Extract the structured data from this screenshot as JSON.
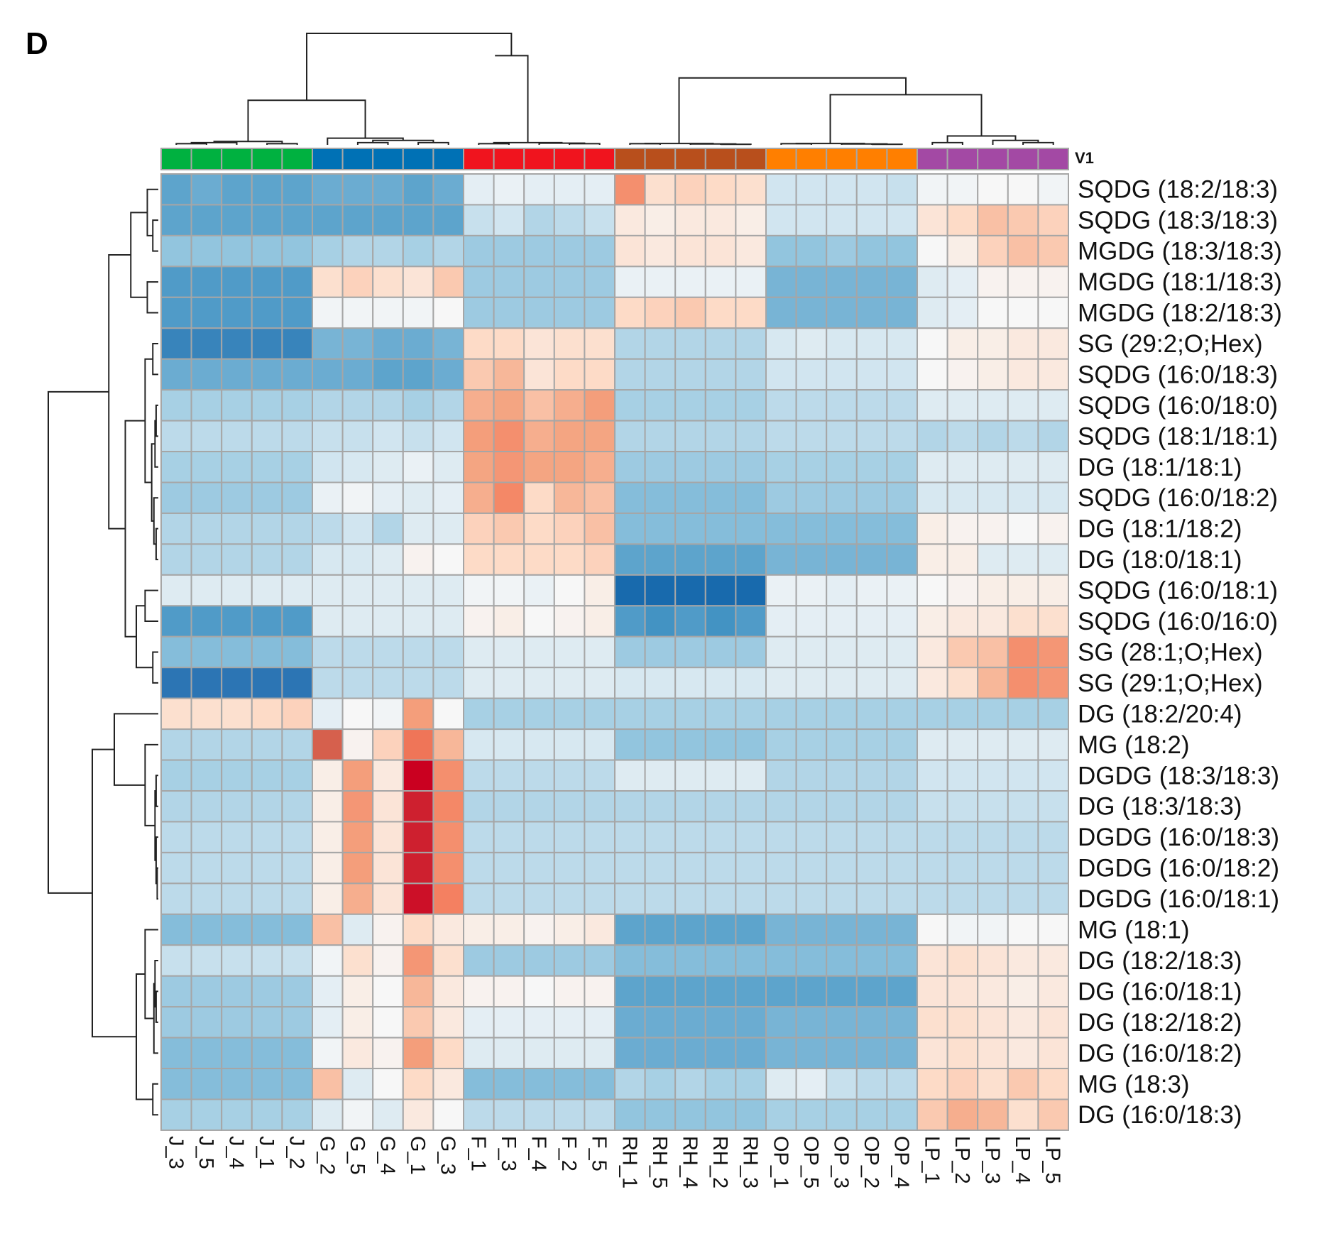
{
  "panel_letter": "D",
  "annotation_label": "V1",
  "chart_data": {
    "type": "heatmap",
    "title": "",
    "color_scale": {
      "min": -3,
      "mid": 0,
      "max": 3,
      "low": "#0571b0",
      "mid_color": "#f7f7f7",
      "high": "#ca0020"
    },
    "groups": [
      {
        "name": "J",
        "color": "#00b140"
      },
      {
        "name": "G",
        "color": "#0071b5"
      },
      {
        "name": "F",
        "color": "#f0141e"
      },
      {
        "name": "RH",
        "color": "#b84f1c"
      },
      {
        "name": "OP",
        "color": "#ff7f00"
      },
      {
        "name": "LP",
        "color": "#a349a4"
      }
    ],
    "columns": [
      "J_3",
      "J_5",
      "J_4",
      "J_1",
      "J_2",
      "G_2",
      "G_5",
      "G_4",
      "G_1",
      "G_3",
      "F_1",
      "F_3",
      "F_4",
      "F_2",
      "F_5",
      "RH_1",
      "RH_5",
      "RH_4",
      "RH_2",
      "RH_3",
      "OP_1",
      "OP_5",
      "OP_3",
      "OP_2",
      "OP_4",
      "LP_1",
      "LP_2",
      "LP_3",
      "LP_4",
      "LP_5"
    ],
    "rows": [
      "SQDG (18:2/18:3)",
      "SQDG (18:3/18:3)",
      "MGDG (18:3/18:3)",
      "MGDG (18:1/18:3)",
      "MGDG (18:2/18:3)",
      "SG (29:2;O;Hex)",
      "SQDG (16:0/18:3)",
      "SQDG (16:0/18:0)",
      "SQDG (18:1/18:1)",
      "DG (18:1/18:1)",
      "SQDG (16:0/18:2)",
      "DG (18:1/18:2)",
      "DG (18:0/18:1)",
      "SQDG (16:0/18:1)",
      "SQDG (16:0/16:0)",
      "SG (28:1;O;Hex)",
      "SG (29:1;O;Hex)",
      "DG (18:2/20:4)",
      "MG (18:2)",
      "DGDG (18:3/18:3)",
      "DG (18:3/18:3)",
      "DGDG (16:0/18:3)",
      "DGDG (16:0/18:2)",
      "DGDG (16:0/18:1)",
      "MG (18:1)",
      "DG (18:2/18:3)",
      "DG (16:0/18:1)",
      "DG (18:2/18:2)",
      "DG (16:0/18:2)",
      "MG (18:3)",
      "DG (16:0/18:3)"
    ],
    "values": [
      [
        -1.6,
        -1.5,
        -1.6,
        -1.6,
        -1.6,
        -1.5,
        -1.5,
        -1.5,
        -1.6,
        -1.5,
        -0.3,
        -0.2,
        -0.3,
        -0.3,
        -0.3,
        1.5,
        0.5,
        0.7,
        0.6,
        0.5,
        -0.6,
        -0.6,
        -0.6,
        -0.6,
        -0.7,
        -0.1,
        -0.1,
        0.0,
        0.0,
        -0.1
      ],
      [
        -1.6,
        -1.6,
        -1.6,
        -1.6,
        -1.6,
        -1.6,
        -1.6,
        -1.6,
        -1.6,
        -1.6,
        -0.7,
        -0.6,
        -0.9,
        -0.8,
        -0.7,
        0.3,
        0.2,
        0.3,
        0.3,
        0.2,
        -0.6,
        -0.6,
        -0.6,
        -0.6,
        -0.6,
        0.4,
        0.6,
        0.9,
        0.8,
        0.7
      ],
      [
        -1.2,
        -1.2,
        -1.2,
        -1.2,
        -1.2,
        -1.0,
        -0.9,
        -0.9,
        -1.0,
        -0.9,
        -1.1,
        -1.1,
        -1.1,
        -1.1,
        -1.1,
        0.4,
        0.3,
        0.4,
        0.4,
        0.3,
        -1.2,
        -1.2,
        -1.1,
        -1.2,
        -1.2,
        0.0,
        0.2,
        0.7,
        0.9,
        0.8
      ],
      [
        -1.7,
        -1.7,
        -1.7,
        -1.7,
        -1.7,
        0.5,
        0.7,
        0.5,
        0.4,
        0.8,
        -1.1,
        -1.1,
        -1.1,
        -1.1,
        -1.1,
        -0.2,
        -0.2,
        -0.2,
        -0.2,
        -0.2,
        -1.4,
        -1.4,
        -1.4,
        -1.4,
        -1.4,
        -0.4,
        -0.3,
        0.1,
        0.1,
        0.1
      ],
      [
        -1.7,
        -1.7,
        -1.7,
        -1.7,
        -1.7,
        -0.1,
        -0.1,
        -0.1,
        -0.1,
        0.0,
        -1.1,
        -1.1,
        -1.1,
        -1.1,
        -1.1,
        0.6,
        0.7,
        0.8,
        0.6,
        0.6,
        -1.4,
        -1.4,
        -1.4,
        -1.4,
        -1.4,
        -0.4,
        -0.3,
        0.0,
        0.0,
        0.0
      ],
      [
        -2.0,
        -2.0,
        -2.0,
        -2.0,
        -2.0,
        -1.4,
        -1.4,
        -1.5,
        -1.5,
        -1.4,
        0.6,
        0.6,
        0.4,
        0.5,
        0.5,
        -0.9,
        -0.9,
        -0.9,
        -0.9,
        -0.9,
        -0.5,
        -0.4,
        -0.5,
        -0.5,
        -0.5,
        0.0,
        0.2,
        0.2,
        0.3,
        0.3
      ],
      [
        -1.5,
        -1.5,
        -1.5,
        -1.5,
        -1.5,
        -1.5,
        -1.5,
        -1.6,
        -1.6,
        -1.5,
        0.8,
        1.0,
        0.4,
        0.6,
        0.6,
        -0.9,
        -0.9,
        -0.9,
        -0.9,
        -0.9,
        -0.6,
        -0.6,
        -0.6,
        -0.6,
        -0.6,
        0.0,
        0.1,
        0.2,
        0.3,
        0.3
      ],
      [
        -1.0,
        -1.0,
        -1.0,
        -1.0,
        -1.0,
        -0.9,
        -0.9,
        -0.9,
        -1.0,
        -0.9,
        1.1,
        1.2,
        0.9,
        1.1,
        1.3,
        -1.0,
        -1.0,
        -1.0,
        -1.0,
        -1.0,
        -0.8,
        -0.8,
        -0.8,
        -0.8,
        -0.8,
        -0.4,
        -0.4,
        -0.4,
        -0.4,
        -0.4
      ],
      [
        -0.8,
        -0.8,
        -0.8,
        -0.8,
        -0.8,
        -0.7,
        -0.7,
        -0.6,
        -0.7,
        -0.6,
        1.3,
        1.5,
        1.1,
        1.2,
        1.2,
        -0.9,
        -0.9,
        -0.9,
        -0.9,
        -0.9,
        -0.8,
        -0.8,
        -0.8,
        -0.8,
        -0.8,
        -0.9,
        -0.8,
        -0.9,
        -0.8,
        -0.9
      ],
      [
        -1.0,
        -1.0,
        -1.0,
        -1.0,
        -1.0,
        -0.6,
        -0.5,
        -0.4,
        -0.2,
        -0.4,
        1.2,
        1.4,
        1.2,
        1.2,
        1.1,
        -1.1,
        -1.1,
        -1.1,
        -1.1,
        -1.1,
        -1.0,
        -1.0,
        -1.0,
        -1.0,
        -1.0,
        -0.4,
        -0.4,
        -0.4,
        -0.4,
        -0.4
      ],
      [
        -1.1,
        -1.1,
        -1.1,
        -1.1,
        -1.1,
        -0.2,
        -0.1,
        -0.3,
        -0.4,
        -0.3,
        1.1,
        1.6,
        0.6,
        1.0,
        0.9,
        -1.3,
        -1.3,
        -1.3,
        -1.3,
        -1.3,
        -1.1,
        -1.1,
        -1.1,
        -1.1,
        -1.1,
        -0.5,
        -0.5,
        -0.5,
        -0.5,
        -0.5
      ],
      [
        -0.9,
        -0.9,
        -0.9,
        -0.9,
        -0.9,
        -0.8,
        -0.6,
        -0.9,
        -0.4,
        -0.4,
        0.7,
        0.8,
        0.6,
        0.7,
        0.9,
        -1.3,
        -1.3,
        -1.3,
        -1.3,
        -1.3,
        -1.3,
        -1.3,
        -1.3,
        -1.3,
        -1.3,
        0.2,
        0.1,
        0.1,
        0.0,
        0.1
      ],
      [
        -0.9,
        -0.9,
        -0.9,
        -0.9,
        -0.9,
        -0.5,
        -0.5,
        -0.4,
        0.1,
        0.0,
        0.6,
        0.6,
        0.6,
        0.6,
        0.7,
        -1.6,
        -1.6,
        -1.6,
        -1.6,
        -1.6,
        -1.4,
        -1.4,
        -1.4,
        -1.4,
        -1.4,
        0.2,
        0.2,
        -0.4,
        -0.4,
        -0.4
      ],
      [
        -0.4,
        -0.4,
        -0.4,
        -0.4,
        -0.4,
        -0.4,
        -0.4,
        -0.4,
        -0.4,
        -0.4,
        -0.1,
        -0.1,
        -0.2,
        0.0,
        0.2,
        -2.6,
        -2.6,
        -2.6,
        -2.6,
        -2.6,
        -0.2,
        -0.2,
        -0.3,
        -0.2,
        -0.2,
        0.0,
        0.1,
        0.2,
        0.2,
        0.2
      ],
      [
        -1.7,
        -1.7,
        -1.7,
        -1.7,
        -1.7,
        -0.4,
        -0.4,
        -0.4,
        -0.4,
        -0.4,
        0.1,
        0.2,
        0.0,
        0.1,
        0.2,
        -1.7,
        -1.8,
        -1.7,
        -1.8,
        -1.7,
        -0.3,
        -0.3,
        -0.3,
        -0.3,
        -0.3,
        0.2,
        0.3,
        0.3,
        0.5,
        0.5
      ],
      [
        -1.3,
        -1.3,
        -1.3,
        -1.3,
        -1.3,
        -0.8,
        -0.8,
        -0.8,
        -0.8,
        -0.8,
        -0.4,
        -0.4,
        -0.4,
        -0.4,
        -0.4,
        -1.1,
        -1.1,
        -1.1,
        -1.1,
        -1.1,
        -0.4,
        -0.4,
        -0.4,
        -0.4,
        -0.4,
        0.3,
        0.8,
        0.9,
        1.5,
        1.4
      ],
      [
        -2.2,
        -2.2,
        -2.2,
        -2.2,
        -2.2,
        -0.8,
        -0.8,
        -0.8,
        -0.8,
        -0.8,
        -0.4,
        -0.4,
        -0.4,
        -0.4,
        -0.4,
        -0.5,
        -0.5,
        -0.5,
        -0.5,
        -0.5,
        -0.4,
        -0.4,
        -0.4,
        -0.4,
        -0.4,
        0.3,
        0.5,
        1.0,
        1.5,
        1.4
      ],
      [
        0.5,
        0.5,
        0.5,
        0.6,
        0.7,
        -0.3,
        0.0,
        -0.1,
        1.3,
        0.0,
        -1.0,
        -1.0,
        -1.0,
        -1.0,
        -1.0,
        -1.0,
        -1.0,
        -1.0,
        -1.0,
        -1.0,
        -1.0,
        -1.0,
        -1.0,
        -1.0,
        -1.0,
        -1.0,
        -1.0,
        -1.0,
        -1.0,
        -1.0
      ],
      [
        -0.9,
        -0.9,
        -0.9,
        -0.9,
        -0.9,
        2.4,
        0.1,
        0.7,
        1.9,
        1.0,
        -0.5,
        -0.5,
        -0.5,
        -0.5,
        -0.5,
        -1.2,
        -1.2,
        -1.2,
        -1.2,
        -1.2,
        -1.0,
        -1.0,
        -1.0,
        -1.0,
        -1.0,
        -0.4,
        -0.4,
        -0.4,
        -0.4,
        -0.4
      ],
      [
        -1.0,
        -1.0,
        -1.0,
        -1.0,
        -1.0,
        0.2,
        1.3,
        0.3,
        3.0,
        1.5,
        -0.8,
        -0.8,
        -0.8,
        -0.8,
        -0.8,
        -0.4,
        -0.4,
        -0.4,
        -0.4,
        -0.4,
        -0.9,
        -0.9,
        -0.9,
        -0.9,
        -0.9,
        -0.6,
        -0.6,
        -0.6,
        -0.6,
        -0.6
      ],
      [
        -0.9,
        -0.9,
        -0.9,
        -0.9,
        -0.9,
        0.2,
        1.4,
        0.4,
        2.8,
        1.6,
        -0.9,
        -0.9,
        -0.9,
        -0.9,
        -0.9,
        -0.9,
        -0.9,
        -0.9,
        -0.9,
        -0.9,
        -0.9,
        -0.9,
        -0.9,
        -0.9,
        -0.9,
        -0.7,
        -0.7,
        -0.7,
        -0.7,
        -0.7
      ],
      [
        -0.8,
        -0.8,
        -0.8,
        -0.8,
        -0.8,
        0.2,
        1.3,
        0.4,
        2.8,
        1.5,
        -0.8,
        -0.8,
        -0.8,
        -0.8,
        -0.8,
        -0.8,
        -0.8,
        -0.8,
        -0.8,
        -0.8,
        -0.8,
        -0.8,
        -0.8,
        -0.8,
        -0.8,
        -0.8,
        -0.8,
        -0.8,
        -0.8,
        -0.8
      ],
      [
        -0.8,
        -0.8,
        -0.8,
        -0.8,
        -0.8,
        0.2,
        1.3,
        0.4,
        2.8,
        1.5,
        -0.8,
        -0.8,
        -0.8,
        -0.8,
        -0.8,
        -0.8,
        -0.8,
        -0.8,
        -0.8,
        -0.8,
        -0.8,
        -0.8,
        -0.8,
        -0.8,
        -0.8,
        -0.8,
        -0.8,
        -0.8,
        -0.8,
        -0.8
      ],
      [
        -0.8,
        -0.8,
        -0.8,
        -0.8,
        -0.8,
        0.2,
        1.1,
        0.4,
        2.9,
        1.7,
        -0.8,
        -0.8,
        -0.8,
        -0.8,
        -0.8,
        -0.8,
        -0.8,
        -0.8,
        -0.8,
        -0.8,
        -0.8,
        -0.8,
        -0.8,
        -0.8,
        -0.8,
        -0.8,
        -0.8,
        -0.8,
        -0.8,
        -0.8
      ],
      [
        -1.3,
        -1.3,
        -1.3,
        -1.3,
        -1.3,
        0.9,
        -0.4,
        0.1,
        0.6,
        0.3,
        0.2,
        0.2,
        0.1,
        0.2,
        0.3,
        -1.6,
        -1.6,
        -1.6,
        -1.6,
        -1.6,
        -1.4,
        -1.4,
        -1.4,
        -1.4,
        -1.4,
        0.0,
        -0.1,
        -0.1,
        0.0,
        0.0
      ],
      [
        -0.7,
        -0.7,
        -0.7,
        -0.7,
        -0.7,
        -0.1,
        0.5,
        0.1,
        1.4,
        0.5,
        -1.1,
        -1.1,
        -1.1,
        -1.1,
        -1.1,
        -1.3,
        -1.3,
        -1.3,
        -1.3,
        -1.3,
        -1.3,
        -1.3,
        -1.3,
        -1.3,
        -1.3,
        0.4,
        0.5,
        0.4,
        0.3,
        0.3
      ],
      [
        -1.1,
        -1.1,
        -1.1,
        -1.1,
        -1.1,
        -0.3,
        0.2,
        0.0,
        1.0,
        0.3,
        0.1,
        0.1,
        0.0,
        0.1,
        0.1,
        -1.6,
        -1.6,
        -1.6,
        -1.6,
        -1.6,
        -1.6,
        -1.6,
        -1.6,
        -1.6,
        -1.6,
        0.4,
        0.4,
        0.3,
        0.2,
        0.3
      ],
      [
        -1.1,
        -1.1,
        -1.1,
        -1.1,
        -1.1,
        -0.3,
        0.2,
        0.0,
        0.8,
        0.3,
        -0.3,
        -0.3,
        -0.3,
        -0.3,
        -0.3,
        -1.5,
        -1.5,
        -1.5,
        -1.5,
        -1.5,
        -1.4,
        -1.4,
        -1.4,
        -1.4,
        -1.4,
        0.5,
        0.5,
        0.4,
        0.3,
        0.4
      ],
      [
        -1.3,
        -1.3,
        -1.3,
        -1.3,
        -1.3,
        -0.1,
        0.3,
        0.1,
        1.3,
        0.6,
        -0.4,
        -0.4,
        -0.4,
        -0.4,
        -0.4,
        -1.5,
        -1.5,
        -1.5,
        -1.5,
        -1.5,
        -1.4,
        -1.4,
        -1.4,
        -1.4,
        -1.4,
        0.4,
        0.5,
        0.4,
        0.3,
        0.4
      ],
      [
        -1.3,
        -1.3,
        -1.3,
        -1.3,
        -1.3,
        0.9,
        -0.4,
        0.0,
        0.6,
        0.3,
        -1.3,
        -1.3,
        -1.3,
        -1.3,
        -1.3,
        -0.9,
        -1.0,
        -0.9,
        -1.0,
        -1.0,
        -0.4,
        -0.3,
        -0.7,
        -0.8,
        -0.8,
        0.6,
        0.7,
        0.5,
        0.8,
        0.6
      ],
      [
        -1.0,
        -1.0,
        -1.0,
        -1.0,
        -1.0,
        -0.4,
        -0.1,
        -0.4,
        0.3,
        0.0,
        -0.8,
        -0.8,
        -0.8,
        -0.8,
        -0.8,
        -1.2,
        -1.2,
        -1.2,
        -1.2,
        -1.2,
        -1.0,
        -1.0,
        -1.0,
        -1.0,
        -1.0,
        0.8,
        1.1,
        1.0,
        0.5,
        0.8
      ]
    ]
  }
}
